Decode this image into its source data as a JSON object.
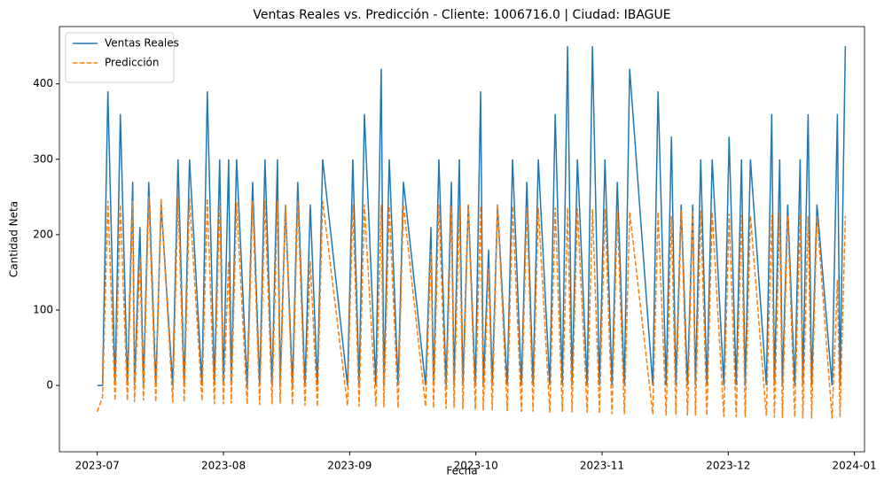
{
  "chart_data": {
    "type": "line",
    "title": "Ventas Reales vs. Predicción - Cliente: 1006716.0 | Ciudad: IBAGUE",
    "x_label": "Fecha",
    "y_label": "Cantidad Neta",
    "x": [
      0,
      0.042,
      0.084,
      0.141,
      0.183,
      0.239,
      0.281,
      0.295,
      0.338,
      0.366,
      0.408,
      0.464,
      0.506,
      0.598,
      0.64,
      0.689,
      0.731,
      0.83,
      0.872,
      0.928,
      0.97,
      0.999,
      1.041,
      1.062,
      1.104,
      1.188,
      1.231,
      1.287,
      1.329,
      1.385,
      1.428,
      1.449,
      1.491,
      1.547,
      1.589,
      1.646,
      1.688,
      1.744,
      1.786,
      1.983,
      2.025,
      2.075,
      2.117,
      2.208,
      2.25,
      2.271,
      2.314,
      2.384,
      2.426,
      2.602,
      2.644,
      2.665,
      2.707,
      2.764,
      2.806,
      2.827,
      2.869,
      2.897,
      2.94,
      2.996,
      3.038,
      3.059,
      3.101,
      3.13,
      3.172,
      3.249,
      3.291,
      3.361,
      3.404,
      3.453,
      3.495,
      3.586,
      3.629,
      3.685,
      3.727,
      3.762,
      3.805,
      3.882,
      3.924,
      3.98,
      4.023,
      4.079,
      4.121,
      4.177,
      4.219,
      4.402,
      4.444,
      4.508,
      4.55,
      4.585,
      4.627,
      4.677,
      4.719,
      4.74,
      4.782,
      4.831,
      4.873,
      4.965,
      5.007,
      5.063,
      5.105,
      5.134,
      5.176,
      5.302,
      5.345,
      5.366,
      5.408,
      5.429,
      5.471,
      5.527,
      5.57,
      5.591,
      5.633,
      5.661,
      5.703,
      5.823,
      5.865,
      5.886,
      5.928
    ],
    "series": [
      {
        "name": "Ventas Reales",
        "color": "#1f77b4",
        "dashed": false,
        "values": [
          0,
          0,
          390,
          0,
          360,
          0,
          270,
          0,
          210,
          0,
          270,
          0,
          240,
          0,
          300,
          0,
          300,
          0,
          390,
          0,
          300,
          0,
          300,
          0,
          300,
          0,
          270,
          0,
          300,
          0,
          300,
          0,
          240,
          0,
          270,
          0,
          240,
          0,
          300,
          0,
          300,
          0,
          360,
          0,
          420,
          0,
          300,
          0,
          270,
          0,
          210,
          0,
          300,
          0,
          270,
          0,
          300,
          0,
          240,
          0,
          390,
          0,
          180,
          0,
          240,
          0,
          300,
          0,
          270,
          0,
          300,
          0,
          360,
          0,
          450,
          0,
          300,
          0,
          450,
          0,
          300,
          0,
          270,
          0,
          420,
          0,
          390,
          0,
          330,
          0,
          240,
          0,
          240,
          0,
          300,
          0,
          300,
          0,
          330,
          0,
          300,
          0,
          300,
          0,
          360,
          0,
          300,
          0,
          240,
          0,
          300,
          0,
          360,
          0,
          240,
          0,
          360,
          0,
          450
        ]
      },
      {
        "name": "Predicción",
        "color": "#ff7f0e",
        "dashed": true,
        "values": [
          -35,
          -15,
          245,
          -20,
          240,
          -20,
          245,
          -22,
          170,
          -20,
          250,
          -22,
          248,
          -23,
          250,
          -22,
          248,
          -20,
          248,
          -25,
          245,
          -25,
          165,
          -24,
          243,
          -25,
          245,
          -26,
          245,
          -25,
          245,
          -24,
          240,
          -26,
          245,
          -27,
          165,
          -28,
          245,
          -27,
          240,
          -28,
          240,
          -28,
          240,
          -29,
          238,
          -30,
          240,
          -28,
          180,
          -30,
          240,
          -31,
          238,
          -30,
          238,
          -32,
          240,
          -32,
          238,
          -33,
          155,
          -33,
          240,
          -34,
          238,
          -35,
          235,
          -35,
          236,
          -36,
          236,
          -35,
          236,
          -36,
          235,
          -36,
          234,
          -37,
          234,
          -38,
          230,
          -38,
          230,
          -38,
          230,
          -40,
          225,
          -39,
          232,
          -40,
          232,
          -40,
          232,
          -40,
          230,
          -42,
          228,
          -42,
          226,
          -42,
          225,
          -40,
          226,
          -43,
          230,
          -43,
          225,
          -42,
          228,
          -44,
          225,
          -44,
          225,
          -44,
          140,
          -42,
          225
        ]
      }
    ],
    "xlim": [
      -0.3,
      6.08
    ],
    "xticks": [
      {
        "value": 0,
        "label": "2023-07"
      },
      {
        "value": 1,
        "label": "2023-08"
      },
      {
        "value": 2,
        "label": "2023-09"
      },
      {
        "value": 3,
        "label": "2023-10"
      },
      {
        "value": 4,
        "label": "2023-11"
      },
      {
        "value": 5,
        "label": "2023-12"
      },
      {
        "value": 6,
        "label": "2024-01"
      }
    ],
    "ylim": [
      -88,
      476
    ],
    "yticks": [
      0,
      100,
      200,
      300,
      400
    ],
    "legend": "upper left",
    "grid": false
  }
}
